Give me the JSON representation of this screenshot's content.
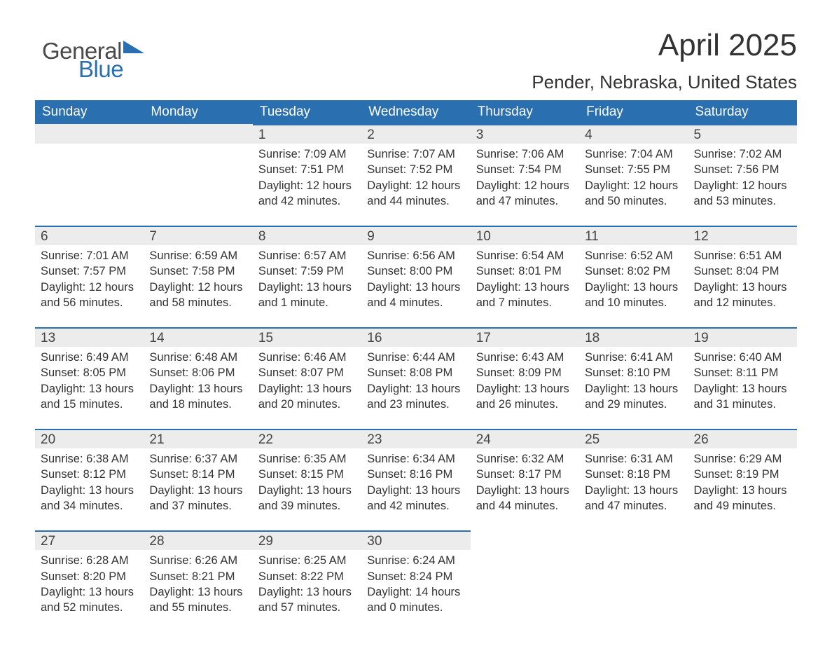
{
  "brand": {
    "word1": "General",
    "word2": "Blue",
    "accent_color": "#2a6fb0",
    "text_color": "#4a4a4a"
  },
  "header": {
    "title": "April 2025",
    "location": "Pender, Nebraska, United States"
  },
  "colors": {
    "header_bg": "#2a6fb0",
    "header_text": "#ffffff",
    "daybar_bg": "#ececec",
    "daybar_border": "#2a6fb0",
    "body_text": "#333333",
    "page_bg": "#ffffff"
  },
  "typography": {
    "title_fontsize": 44,
    "location_fontsize": 26,
    "dayhead_fontsize": 19,
    "daynum_fontsize": 19,
    "body_fontsize": 16.5
  },
  "days_of_week": [
    "Sunday",
    "Monday",
    "Tuesday",
    "Wednesday",
    "Thursday",
    "Friday",
    "Saturday"
  ],
  "labels": {
    "sunrise": "Sunrise:",
    "sunset": "Sunset:",
    "daylight": "Daylight:"
  },
  "weeks": [
    [
      null,
      null,
      {
        "n": "1",
        "sunrise": "7:09 AM",
        "sunset": "7:51 PM",
        "daylight": "12 hours and 42 minutes."
      },
      {
        "n": "2",
        "sunrise": "7:07 AM",
        "sunset": "7:52 PM",
        "daylight": "12 hours and 44 minutes."
      },
      {
        "n": "3",
        "sunrise": "7:06 AM",
        "sunset": "7:54 PM",
        "daylight": "12 hours and 47 minutes."
      },
      {
        "n": "4",
        "sunrise": "7:04 AM",
        "sunset": "7:55 PM",
        "daylight": "12 hours and 50 minutes."
      },
      {
        "n": "5",
        "sunrise": "7:02 AM",
        "sunset": "7:56 PM",
        "daylight": "12 hours and 53 minutes."
      }
    ],
    [
      {
        "n": "6",
        "sunrise": "7:01 AM",
        "sunset": "7:57 PM",
        "daylight": "12 hours and 56 minutes."
      },
      {
        "n": "7",
        "sunrise": "6:59 AM",
        "sunset": "7:58 PM",
        "daylight": "12 hours and 58 minutes."
      },
      {
        "n": "8",
        "sunrise": "6:57 AM",
        "sunset": "7:59 PM",
        "daylight": "13 hours and 1 minute."
      },
      {
        "n": "9",
        "sunrise": "6:56 AM",
        "sunset": "8:00 PM",
        "daylight": "13 hours and 4 minutes."
      },
      {
        "n": "10",
        "sunrise": "6:54 AM",
        "sunset": "8:01 PM",
        "daylight": "13 hours and 7 minutes."
      },
      {
        "n": "11",
        "sunrise": "6:52 AM",
        "sunset": "8:02 PM",
        "daylight": "13 hours and 10 minutes."
      },
      {
        "n": "12",
        "sunrise": "6:51 AM",
        "sunset": "8:04 PM",
        "daylight": "13 hours and 12 minutes."
      }
    ],
    [
      {
        "n": "13",
        "sunrise": "6:49 AM",
        "sunset": "8:05 PM",
        "daylight": "13 hours and 15 minutes."
      },
      {
        "n": "14",
        "sunrise": "6:48 AM",
        "sunset": "8:06 PM",
        "daylight": "13 hours and 18 minutes."
      },
      {
        "n": "15",
        "sunrise": "6:46 AM",
        "sunset": "8:07 PM",
        "daylight": "13 hours and 20 minutes."
      },
      {
        "n": "16",
        "sunrise": "6:44 AM",
        "sunset": "8:08 PM",
        "daylight": "13 hours and 23 minutes."
      },
      {
        "n": "17",
        "sunrise": "6:43 AM",
        "sunset": "8:09 PM",
        "daylight": "13 hours and 26 minutes."
      },
      {
        "n": "18",
        "sunrise": "6:41 AM",
        "sunset": "8:10 PM",
        "daylight": "13 hours and 29 minutes."
      },
      {
        "n": "19",
        "sunrise": "6:40 AM",
        "sunset": "8:11 PM",
        "daylight": "13 hours and 31 minutes."
      }
    ],
    [
      {
        "n": "20",
        "sunrise": "6:38 AM",
        "sunset": "8:12 PM",
        "daylight": "13 hours and 34 minutes."
      },
      {
        "n": "21",
        "sunrise": "6:37 AM",
        "sunset": "8:14 PM",
        "daylight": "13 hours and 37 minutes."
      },
      {
        "n": "22",
        "sunrise": "6:35 AM",
        "sunset": "8:15 PM",
        "daylight": "13 hours and 39 minutes."
      },
      {
        "n": "23",
        "sunrise": "6:34 AM",
        "sunset": "8:16 PM",
        "daylight": "13 hours and 42 minutes."
      },
      {
        "n": "24",
        "sunrise": "6:32 AM",
        "sunset": "8:17 PM",
        "daylight": "13 hours and 44 minutes."
      },
      {
        "n": "25",
        "sunrise": "6:31 AM",
        "sunset": "8:18 PM",
        "daylight": "13 hours and 47 minutes."
      },
      {
        "n": "26",
        "sunrise": "6:29 AM",
        "sunset": "8:19 PM",
        "daylight": "13 hours and 49 minutes."
      }
    ],
    [
      {
        "n": "27",
        "sunrise": "6:28 AM",
        "sunset": "8:20 PM",
        "daylight": "13 hours and 52 minutes."
      },
      {
        "n": "28",
        "sunrise": "6:26 AM",
        "sunset": "8:21 PM",
        "daylight": "13 hours and 55 minutes."
      },
      {
        "n": "29",
        "sunrise": "6:25 AM",
        "sunset": "8:22 PM",
        "daylight": "13 hours and 57 minutes."
      },
      {
        "n": "30",
        "sunrise": "6:24 AM",
        "sunset": "8:24 PM",
        "daylight": "14 hours and 0 minutes."
      },
      null,
      null,
      null
    ]
  ]
}
